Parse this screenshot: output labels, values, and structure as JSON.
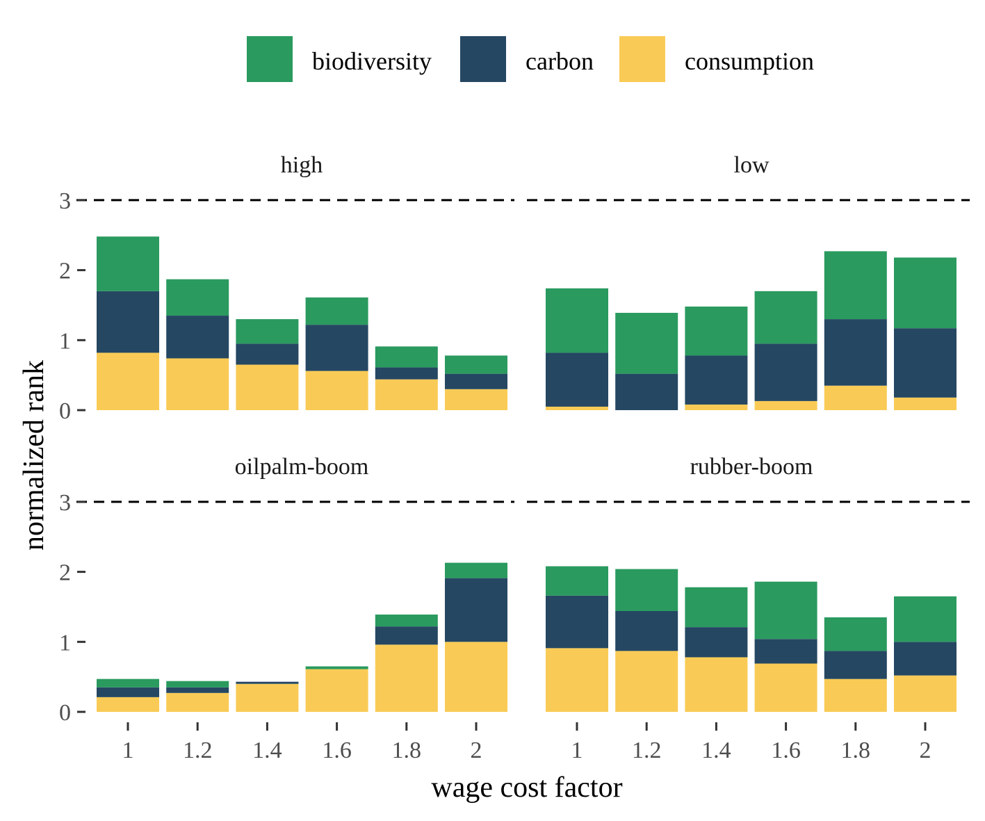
{
  "chart_data": {
    "type": "bar",
    "stacked": true,
    "xlabel": "wage cost factor",
    "ylabel": "normalized rank",
    "categories": [
      "1",
      "1.2",
      "1.4",
      "1.6",
      "1.8",
      "2"
    ],
    "ylim": [
      0,
      3
    ],
    "yticks": [
      "0",
      "1",
      "2",
      "3"
    ],
    "reference_line": {
      "y": 3,
      "style": "dashed"
    },
    "legend_position": "top",
    "series_colors": {
      "biodiversity": "#2a9a5f",
      "carbon": "#254762",
      "consumption": "#f9cb56"
    },
    "legend": [
      "biodiversity",
      "carbon",
      "consumption"
    ],
    "panels": [
      {
        "label": "high",
        "series": [
          {
            "name": "consumption",
            "values": [
              0.82,
              0.74,
              0.65,
              0.56,
              0.44,
              0.3
            ]
          },
          {
            "name": "carbon",
            "values": [
              0.88,
              0.61,
              0.3,
              0.66,
              0.17,
              0.22
            ]
          },
          {
            "name": "biodiversity",
            "values": [
              0.78,
              0.52,
              0.35,
              0.39,
              0.3,
              0.26
            ]
          }
        ]
      },
      {
        "label": "low",
        "series": [
          {
            "name": "consumption",
            "values": [
              0.05,
              0.0,
              0.08,
              0.13,
              0.35,
              0.18
            ]
          },
          {
            "name": "carbon",
            "values": [
              0.77,
              0.52,
              0.7,
              0.82,
              0.95,
              0.99
            ]
          },
          {
            "name": "biodiversity",
            "values": [
              0.92,
              0.87,
              0.7,
              0.75,
              0.97,
              1.01
            ]
          }
        ]
      },
      {
        "label": "oilpalm-boom",
        "series": [
          {
            "name": "consumption",
            "values": [
              0.21,
              0.27,
              0.4,
              0.61,
              0.96,
              1.0
            ]
          },
          {
            "name": "carbon",
            "values": [
              0.14,
              0.08,
              0.03,
              0.0,
              0.26,
              0.91
            ]
          },
          {
            "name": "biodiversity",
            "values": [
              0.12,
              0.09,
              0.0,
              0.04,
              0.17,
              0.22
            ]
          }
        ]
      },
      {
        "label": "rubber-boom",
        "series": [
          {
            "name": "consumption",
            "values": [
              0.91,
              0.87,
              0.78,
              0.69,
              0.47,
              0.52
            ]
          },
          {
            "name": "carbon",
            "values": [
              0.75,
              0.57,
              0.43,
              0.35,
              0.4,
              0.48
            ]
          },
          {
            "name": "biodiversity",
            "values": [
              0.42,
              0.6,
              0.57,
              0.82,
              0.48,
              0.65
            ]
          }
        ]
      }
    ]
  }
}
